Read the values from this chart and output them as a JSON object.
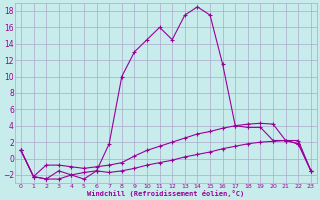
{
  "xlabel": "Windchill (Refroidissement éolien,°C)",
  "background_color": "#c8ecec",
  "line_color": "#990099",
  "grid_color": "#aaaacc",
  "xlim": [
    -0.5,
    23.5
  ],
  "ylim": [
    -3,
    19
  ],
  "yticks": [
    -2,
    0,
    2,
    4,
    6,
    8,
    10,
    12,
    14,
    16,
    18
  ],
  "xticks": [
    0,
    1,
    2,
    3,
    4,
    5,
    6,
    7,
    8,
    9,
    10,
    11,
    12,
    13,
    14,
    15,
    16,
    17,
    18,
    19,
    20,
    21,
    22,
    23
  ],
  "curve1_x": [
    0,
    1,
    2,
    3,
    4,
    5,
    6,
    7,
    8,
    9,
    10,
    11,
    12,
    13,
    14,
    15,
    16,
    17,
    18,
    19,
    20,
    21,
    22,
    23
  ],
  "curve1_y": [
    1,
    -2.2,
    -2.5,
    -1.5,
    -2,
    -2.5,
    -1.5,
    -1.7,
    -1.5,
    -1.2,
    -0.8,
    -0.5,
    -0.2,
    0.2,
    0.5,
    0.8,
    1.2,
    1.5,
    1.8,
    2.0,
    2.1,
    2.2,
    2.2,
    -1.5
  ],
  "curve2_x": [
    0,
    1,
    2,
    3,
    4,
    5,
    6,
    7,
    8,
    9,
    10,
    11,
    12,
    13,
    14,
    15,
    16,
    17,
    18,
    19,
    20,
    21,
    22,
    23
  ],
  "curve2_y": [
    1,
    -2.2,
    -2.5,
    -2.5,
    -2,
    -1.7,
    -1.5,
    1.8,
    10,
    13,
    14.5,
    16,
    14.5,
    17.5,
    18.5,
    17.5,
    11.5,
    4.0,
    3.8,
    3.8,
    2.2,
    2.2,
    1.8,
    -1.5
  ],
  "curve3_x": [
    0,
    1,
    2,
    3,
    4,
    5,
    6,
    7,
    8,
    9,
    10,
    11,
    12,
    13,
    14,
    15,
    16,
    17,
    18,
    19,
    20,
    21,
    22,
    23
  ],
  "curve3_y": [
    1,
    -2.2,
    -0.8,
    -0.8,
    -1.0,
    -1.2,
    -1.0,
    -0.8,
    -0.5,
    0.3,
    1.0,
    1.5,
    2.0,
    2.5,
    3.0,
    3.3,
    3.7,
    4.0,
    4.2,
    4.3,
    4.2,
    2.2,
    1.8,
    -1.5
  ]
}
